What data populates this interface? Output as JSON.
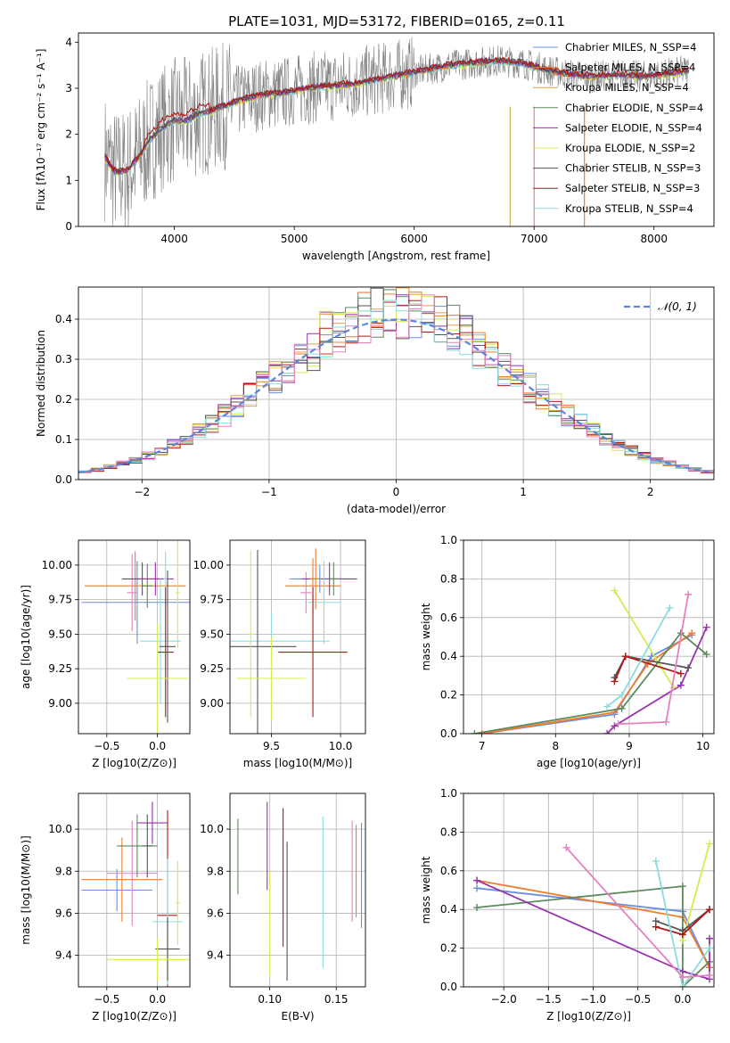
{
  "figure_title": "PLATE=1031, MJD=53172, FIBERID=0165, z=0.11",
  "colors": {
    "data": "#808080",
    "series": [
      "#6a8ee0",
      "#f07d2a",
      "#e0a040",
      "#5e8a5e",
      "#9a32b0",
      "#d4ec50",
      "#555555",
      "#b01818",
      "#88dde0",
      "#e880c0"
    ]
  },
  "chart_data": [
    {
      "id": "spectrum",
      "type": "line",
      "title": "",
      "xlabel": "wavelength [Angstrom, rest frame]",
      "ylabel": "Flux [fλ10⁻¹⁷ erg cm⁻² s⁻¹ A⁻¹]",
      "xlim": [
        3200,
        8500
      ],
      "ylim": [
        0,
        4.2
      ],
      "xticks": [
        4000,
        5000,
        6000,
        7000,
        8000
      ],
      "yticks": [
        0,
        1,
        2,
        3,
        4
      ],
      "grid": false,
      "legend_position": "upper-right",
      "legend": [
        "Chabrier MILES, N_SSP=4",
        "Salpeter MILES, N_SSP=4",
        "Kroupa MILES, N_SSP=4",
        "Chabrier ELODIE, N_SSP=4",
        "Salpeter ELODIE, N_SSP=4",
        "Kroupa ELODIE, N_SSP=2",
        "Chabrier STELIB, N_SSP=3",
        "Salpeter STELIB, N_SSP=3",
        "Kroupa STELIB, N_SSP=4"
      ],
      "model_curve": {
        "x": [
          3420,
          3500,
          3600,
          3700,
          3800,
          3900,
          4000,
          4100,
          4200,
          4300,
          4500,
          4700,
          4900,
          5100,
          5300,
          5500,
          5700,
          5900,
          6100,
          6300,
          6500,
          6700,
          6900,
          7100,
          7300,
          7500,
          7700,
          7900,
          8100,
          8300
        ],
        "y": [
          1.5,
          1.2,
          1.2,
          1.5,
          1.9,
          2.15,
          2.3,
          2.3,
          2.45,
          2.5,
          2.7,
          2.85,
          2.9,
          3.0,
          3.05,
          3.1,
          3.2,
          3.3,
          3.4,
          3.5,
          3.55,
          3.6,
          3.55,
          3.4,
          3.3,
          3.25,
          3.3,
          3.25,
          3.3,
          3.4
        ]
      }
    },
    {
      "id": "residuals",
      "type": "histogram",
      "title": "",
      "xlabel": "(data-model)/error",
      "ylabel": "Normed distribution",
      "xlim": [
        -2.5,
        2.5
      ],
      "ylim": [
        0,
        0.48
      ],
      "xticks": [
        -2,
        -1,
        0,
        1,
        2
      ],
      "yticks": [
        0.0,
        0.1,
        0.2,
        0.3,
        0.4
      ],
      "grid": true,
      "legend_position": "upper-right",
      "legend": [
        "𝒩(0, 1)"
      ],
      "gaussian": {
        "mu": 0,
        "sigma": 1
      }
    },
    {
      "id": "age-vs-Z",
      "type": "errorbar",
      "xlabel": "Z [log10(Z/Z⊙)]",
      "ylabel": "age  [log10(age/yr)]",
      "xlim": [
        -0.78,
        0.32
      ],
      "ylim": [
        8.78,
        10.18
      ],
      "xticks": [
        -0.5,
        0.0
      ],
      "yticks": [
        9.0,
        9.25,
        9.5,
        9.75,
        10.0
      ],
      "grid": true,
      "points": [
        {
          "x": -0.2,
          "y": 9.73,
          "xerr": 0.55,
          "yerr": 0.3,
          "c": 0
        },
        {
          "x": -0.22,
          "y": 9.85,
          "xerr": 0.5,
          "yerr": 0.25,
          "c": 1
        },
        {
          "x": -0.25,
          "y": 9.8,
          "xerr": 0.05,
          "yerr": 0.28,
          "c": 9
        },
        {
          "x": -0.15,
          "y": 9.9,
          "xerr": 0.2,
          "yerr": 0.12,
          "c": 6
        },
        {
          "x": -0.1,
          "y": 9.85,
          "xerr": 0.05,
          "yerr": 0.16,
          "c": 3
        },
        {
          "x": -0.02,
          "y": 9.9,
          "xerr": 0.18,
          "yerr": 0.12,
          "c": 4
        },
        {
          "x": 0.08,
          "y": 9.9,
          "xerr": 0.02,
          "yerr": 0.2,
          "c": 8
        },
        {
          "x": 0.2,
          "y": 9.8,
          "xerr": 0.02,
          "yerr": 0.4,
          "c": 5
        },
        {
          "x": 0.03,
          "y": 9.45,
          "xerr": 0.2,
          "yerr": 0.45,
          "c": 8
        },
        {
          "x": 0.1,
          "y": 9.41,
          "xerr": 0.08,
          "yerr": 0.55,
          "c": 6
        },
        {
          "x": 0.08,
          "y": 9.37,
          "xerr": 0.08,
          "yerr": 0.47,
          "c": 7
        },
        {
          "x": 0.0,
          "y": 9.18,
          "xerr": 0.3,
          "yerr": 0.4,
          "c": 5
        }
      ]
    },
    {
      "id": "age-vs-mass",
      "type": "errorbar",
      "xlabel": "mass [log10(M/M⊙)]",
      "ylabel": "",
      "xlim": [
        9.2,
        10.18
      ],
      "ylim": [
        8.78,
        10.18
      ],
      "xticks": [
        9.5,
        10.0
      ],
      "yticks": [
        9.0,
        9.25,
        9.5,
        9.75,
        10.0
      ],
      "grid": true,
      "points": [
        {
          "x": 9.85,
          "y": 9.9,
          "xerr": 0.22,
          "yerr": 0.1,
          "c": 0
        },
        {
          "x": 9.8,
          "y": 9.85,
          "xerr": 0.2,
          "yerr": 0.2,
          "c": 1
        },
        {
          "x": 9.75,
          "y": 9.8,
          "xerr": 0.04,
          "yerr": 0.15,
          "c": 9
        },
        {
          "x": 9.92,
          "y": 9.9,
          "xerr": 0.2,
          "yerr": 0.12,
          "c": 4
        },
        {
          "x": 9.95,
          "y": 9.9,
          "xerr": 0.04,
          "yerr": 0.12,
          "c": 3
        },
        {
          "x": 9.82,
          "y": 9.9,
          "xerr": 0.04,
          "yerr": 0.22,
          "c": 1
        },
        {
          "x": 9.88,
          "y": 9.73,
          "xerr": 0.12,
          "yerr": 0.3,
          "c": 8
        },
        {
          "x": 9.5,
          "y": 9.45,
          "xerr": 0.42,
          "yerr": 0.2,
          "c": 8
        },
        {
          "x": 9.4,
          "y": 9.41,
          "xerr": 0.28,
          "yerr": 0.7,
          "c": 6
        },
        {
          "x": 9.8,
          "y": 9.37,
          "xerr": 0.25,
          "yerr": 0.47,
          "c": 7
        },
        {
          "x": 9.5,
          "y": 9.18,
          "xerr": 0.25,
          "yerr": 0.3,
          "c": 5
        },
        {
          "x": 9.35,
          "y": 9.5,
          "xerr": 0.02,
          "yerr": 0.6,
          "c": 5
        }
      ]
    },
    {
      "id": "weight-vs-age",
      "type": "line",
      "xlabel": "age  [log10(age/yr)]",
      "ylabel": "mass weight",
      "xlim": [
        6.75,
        10.15
      ],
      "ylim": [
        0.0,
        1.0
      ],
      "xticks": [
        7,
        8,
        9,
        10
      ],
      "yticks": [
        0.0,
        0.2,
        0.4,
        0.6,
        0.8,
        1.0
      ],
      "grid": true,
      "series": [
        {
          "c": 0,
          "x": [
            7.0,
            8.8,
            9.3,
            9.85
          ],
          "y": [
            0.0,
            0.1,
            0.4,
            0.51
          ]
        },
        {
          "c": 1,
          "x": [
            7.0,
            8.8,
            9.25,
            9.85
          ],
          "y": [
            0.0,
            0.11,
            0.36,
            0.52
          ]
        },
        {
          "c": 3,
          "x": [
            6.9,
            8.9,
            9.7,
            10.05
          ],
          "y": [
            0.0,
            0.13,
            0.52,
            0.41
          ]
        },
        {
          "c": 4,
          "x": [
            8.7,
            8.8,
            9.7,
            10.05
          ],
          "y": [
            0.0,
            0.04,
            0.25,
            0.55
          ]
        },
        {
          "c": 5,
          "x": [
            8.8,
            9.6
          ],
          "y": [
            0.74,
            0.24
          ]
        },
        {
          "c": 6,
          "x": [
            8.8,
            8.95,
            9.8
          ],
          "y": [
            0.29,
            0.4,
            0.34
          ]
        },
        {
          "c": 7,
          "x": [
            8.8,
            8.95,
            9.7
          ],
          "y": [
            0.27,
            0.4,
            0.31
          ]
        },
        {
          "c": 8,
          "x": [
            8.7,
            8.9,
            9.55
          ],
          "y": [
            0.14,
            0.2,
            0.65
          ]
        },
        {
          "c": 9,
          "x": [
            8.85,
            9.5,
            9.8
          ],
          "y": [
            0.05,
            0.06,
            0.72
          ]
        }
      ]
    },
    {
      "id": "mass-vs-Z",
      "type": "errorbar",
      "xlabel": "Z [log10(Z/Z⊙)]",
      "ylabel": "mass [log10(M/M⊙)]",
      "xlim": [
        -0.78,
        0.32
      ],
      "ylim": [
        9.25,
        10.17
      ],
      "xticks": [
        -0.5,
        0.0
      ],
      "yticks": [
        9.4,
        9.6,
        9.8,
        10.0
      ],
      "grid": true,
      "points": [
        {
          "x": -0.4,
          "y": 9.71,
          "xerr": 0.35,
          "yerr": 0.1,
          "c": 0
        },
        {
          "x": -0.35,
          "y": 9.76,
          "xerr": 0.4,
          "yerr": 0.2,
          "c": 1
        },
        {
          "x": -0.25,
          "y": 9.79,
          "xerr": 0.25,
          "yerr": 0.25,
          "c": 9
        },
        {
          "x": -0.2,
          "y": 9.92,
          "xerr": 0.2,
          "yerr": 0.15,
          "c": 3
        },
        {
          "x": -0.1,
          "y": 9.92,
          "xerr": 0.05,
          "yerr": 0.15,
          "c": 6
        },
        {
          "x": -0.05,
          "y": 10.03,
          "xerr": 0.15,
          "yerr": 0.1,
          "c": 4
        },
        {
          "x": 0.1,
          "y": 9.59,
          "xerr": 0.1,
          "yerr": 0.5,
          "c": 7
        },
        {
          "x": 0.1,
          "y": 9.56,
          "xerr": 0.15,
          "yerr": 0.3,
          "c": 8
        },
        {
          "x": 0.1,
          "y": 9.43,
          "xerr": 0.12,
          "yerr": 0.15,
          "c": 6
        },
        {
          "x": 0.0,
          "y": 9.38,
          "xerr": 0.5,
          "yerr": 0.1,
          "c": 5
        },
        {
          "x": 0.2,
          "y": 9.65,
          "xerr": 0.02,
          "yerr": 0.2,
          "c": 5
        }
      ]
    },
    {
      "id": "mass-vs-ebv",
      "type": "errorbar",
      "xlabel": "E(B-V)",
      "ylabel": "",
      "xlim": [
        0.07,
        0.172
      ],
      "ylim": [
        9.25,
        10.17
      ],
      "xticks": [
        0.1,
        0.15
      ],
      "yticks": [
        9.4,
        9.6,
        9.8,
        10.0
      ],
      "grid": true,
      "points": [
        {
          "x": 0.076,
          "y": 9.87,
          "xerr": 0,
          "yerr": 0.18,
          "c": 3
        },
        {
          "x": 0.098,
          "y": 9.92,
          "xerr": 0,
          "yerr": 0.21,
          "c": 4
        },
        {
          "x": 0.1,
          "y": 9.55,
          "xerr": 0,
          "yerr": 0.25,
          "c": 5
        },
        {
          "x": 0.11,
          "y": 9.77,
          "xerr": 0,
          "yerr": 0.33,
          "c": 7
        },
        {
          "x": 0.113,
          "y": 9.61,
          "xerr": 0,
          "yerr": 0.33,
          "c": 6
        },
        {
          "x": 0.14,
          "y": 9.7,
          "xerr": 0,
          "yerr": 0.36,
          "c": 8
        },
        {
          "x": 0.162,
          "y": 9.8,
          "xerr": 0,
          "yerr": 0.24,
          "c": 9
        },
        {
          "x": 0.165,
          "y": 9.8,
          "xerr": 0,
          "yerr": 0.22,
          "c": 1
        },
        {
          "x": 0.169,
          "y": 9.78,
          "xerr": 0,
          "yerr": 0.25,
          "c": 0
        }
      ]
    },
    {
      "id": "weight-vs-Z",
      "type": "line",
      "xlabel": "Z [log10(Z/Z⊙)]",
      "ylabel": "mass weight",
      "xlim": [
        -2.45,
        0.35
      ],
      "ylim": [
        0.0,
        1.0
      ],
      "xticks": [
        -2.0,
        -1.5,
        -1.0,
        -0.5,
        0.0
      ],
      "yticks": [
        0.0,
        0.2,
        0.4,
        0.6,
        0.8,
        1.0
      ],
      "grid": true,
      "series": [
        {
          "c": 0,
          "x": [
            -2.3,
            0.0,
            0.3
          ],
          "y": [
            0.51,
            0.39,
            0.1
          ]
        },
        {
          "c": 1,
          "x": [
            -2.3,
            0.0,
            0.3
          ],
          "y": [
            0.55,
            0.36,
            0.1
          ]
        },
        {
          "c": 3,
          "x": [
            -2.3,
            0.0,
            0.0,
            0.3
          ],
          "y": [
            0.41,
            0.52,
            0.0,
            0.13
          ]
        },
        {
          "c": 4,
          "x": [
            -2.3,
            0.0,
            0.3,
            0.3
          ],
          "y": [
            0.55,
            0.08,
            0.04,
            0.25
          ]
        },
        {
          "c": 5,
          "x": [
            0.0,
            0.3
          ],
          "y": [
            0.24,
            0.74
          ]
        },
        {
          "c": 6,
          "x": [
            -0.3,
            0.0,
            0.3
          ],
          "y": [
            0.34,
            0.29,
            0.4
          ]
        },
        {
          "c": 7,
          "x": [
            -0.3,
            0.0,
            0.3
          ],
          "y": [
            0.31,
            0.27,
            0.4
          ]
        },
        {
          "c": 8,
          "x": [
            -0.3,
            0.0,
            0.3
          ],
          "y": [
            0.65,
            0.0,
            0.2
          ]
        },
        {
          "c": 9,
          "x": [
            -1.3,
            0.0,
            0.3
          ],
          "y": [
            0.72,
            0.05,
            0.06
          ]
        }
      ]
    }
  ]
}
